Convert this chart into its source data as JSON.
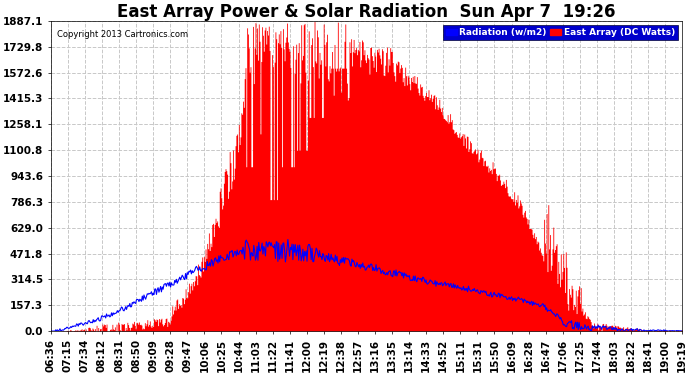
{
  "title": "East Array Power & Solar Radiation  Sun Apr 7  19:26",
  "copyright": "Copyright 2013 Cartronics.com",
  "legend_items": [
    "Radiation (w/m2)",
    "East Array (DC Watts)"
  ],
  "legend_colors": [
    "#0000ff",
    "#ff0000"
  ],
  "legend_bg": "#0000cc",
  "y_max": 1887.1,
  "y_min": 0.0,
  "y_ticks": [
    0.0,
    157.3,
    314.5,
    471.8,
    629.0,
    786.3,
    943.6,
    1100.8,
    1258.1,
    1415.3,
    1572.6,
    1729.8,
    1887.1
  ],
  "x_labels": [
    "06:36",
    "07:15",
    "07:34",
    "08:12",
    "08:31",
    "08:50",
    "09:09",
    "09:28",
    "09:47",
    "10:06",
    "10:25",
    "10:44",
    "11:03",
    "11:22",
    "11:41",
    "12:00",
    "12:19",
    "12:38",
    "12:57",
    "13:16",
    "13:35",
    "13:14",
    "14:33",
    "14:52",
    "15:11",
    "15:31",
    "15:50",
    "16:09",
    "16:28",
    "16:47",
    "17:06",
    "17:25",
    "17:44",
    "18:03",
    "18:22",
    "18:41",
    "19:00",
    "19:19"
  ],
  "background_color": "#ffffff",
  "plot_bg": "#ffffff",
  "grid_color": "#c8c8c8",
  "red_color": "#ff0000",
  "blue_color": "#0000ff",
  "title_fontsize": 12,
  "tick_fontsize": 7.5
}
